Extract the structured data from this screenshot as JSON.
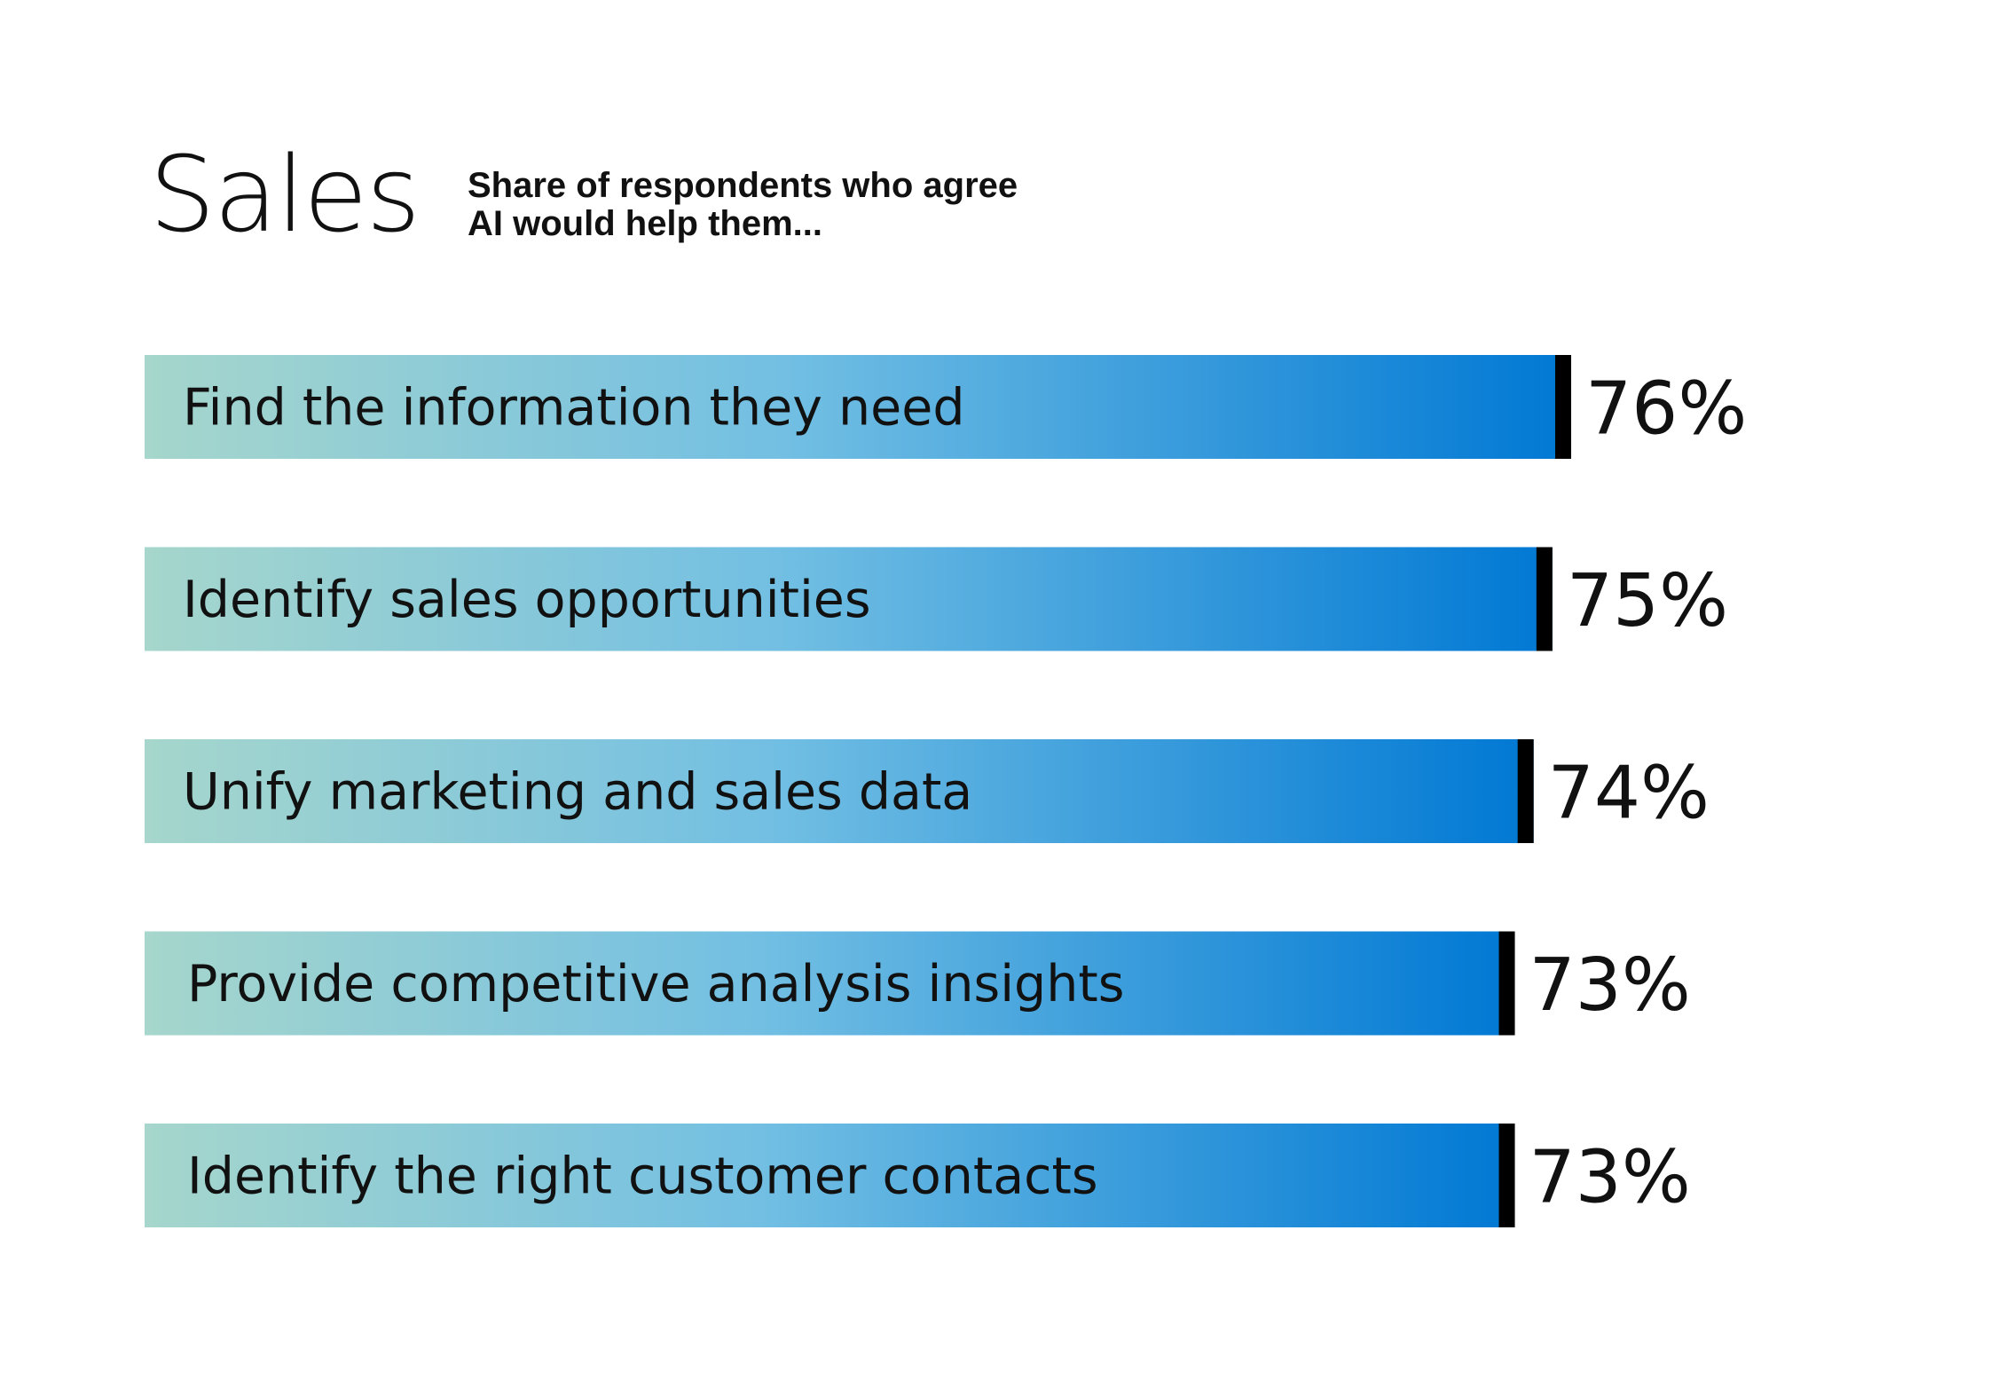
{
  "chart_data": {
    "type": "bar",
    "orientation": "horizontal",
    "title": "Sales",
    "subtitle_lines": [
      "Share of respondents who agree",
      "AI would help them..."
    ],
    "categories": [
      "Find the information they need",
      "Identify sales opportunities",
      "Unify marketing and sales data",
      "Provide competitive analysis insights",
      "Identify the right customer contacts"
    ],
    "values": [
      76,
      75,
      74,
      73,
      73
    ],
    "value_labels": [
      "76%",
      "75%",
      "74%",
      "73%",
      "73%"
    ],
    "unit": "%",
    "grid": false,
    "legend": "none",
    "colors": {
      "gradient_start": "#a6d6cc",
      "gradient_mid": "#72bfe3",
      "gradient_end": "#0078d4",
      "end_marker": "#000000"
    }
  }
}
